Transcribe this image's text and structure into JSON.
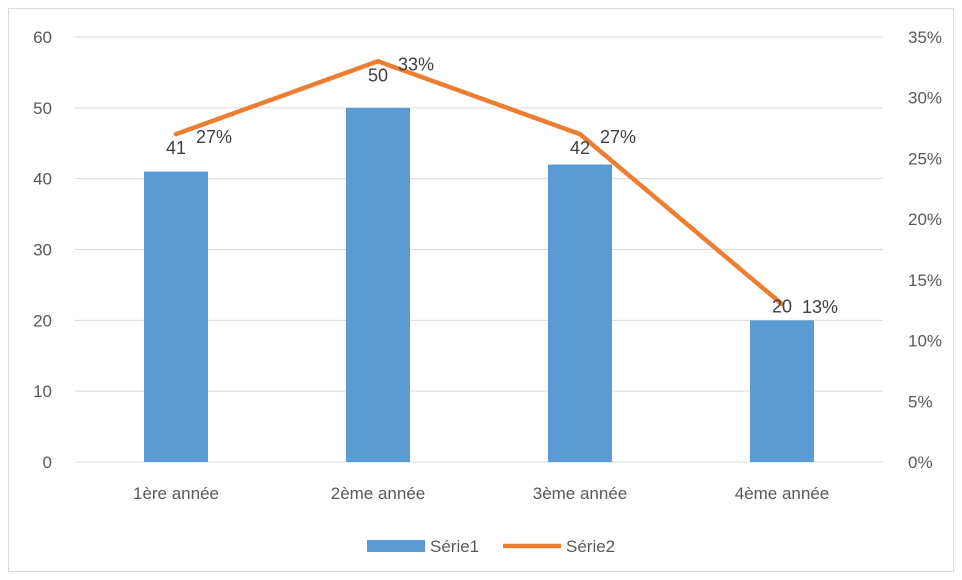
{
  "chart_data": {
    "type": "bar",
    "categories": [
      "1ère année",
      "2ème année",
      "3ème année",
      "4ème année"
    ],
    "series": [
      {
        "name": "Série1",
        "type": "bar",
        "axis": "left",
        "values": [
          41,
          50,
          42,
          20
        ],
        "labels": [
          "41",
          "50",
          "42",
          "20"
        ],
        "color": "#5b9bd5"
      },
      {
        "name": "Série2",
        "type": "line",
        "axis": "right",
        "values": [
          27,
          33,
          27,
          13
        ],
        "labels": [
          "27%",
          "33%",
          "27%",
          "13%"
        ],
        "color": "#ed7d31"
      }
    ],
    "left_axis": {
      "ylim": [
        0,
        60
      ],
      "ticks": [
        0,
        10,
        20,
        30,
        40,
        50,
        60
      ],
      "tick_labels": [
        "0",
        "10",
        "20",
        "30",
        "40",
        "50",
        "60"
      ]
    },
    "right_axis": {
      "ylim": [
        0,
        35
      ],
      "ticks": [
        0,
        5,
        10,
        15,
        20,
        25,
        30,
        35
      ],
      "tick_labels": [
        "0%",
        "5%",
        "10%",
        "15%",
        "20%",
        "25%",
        "30%",
        "35%"
      ]
    },
    "grid": true,
    "legend": "bottom",
    "gridline_color": "#d9d9d9"
  }
}
